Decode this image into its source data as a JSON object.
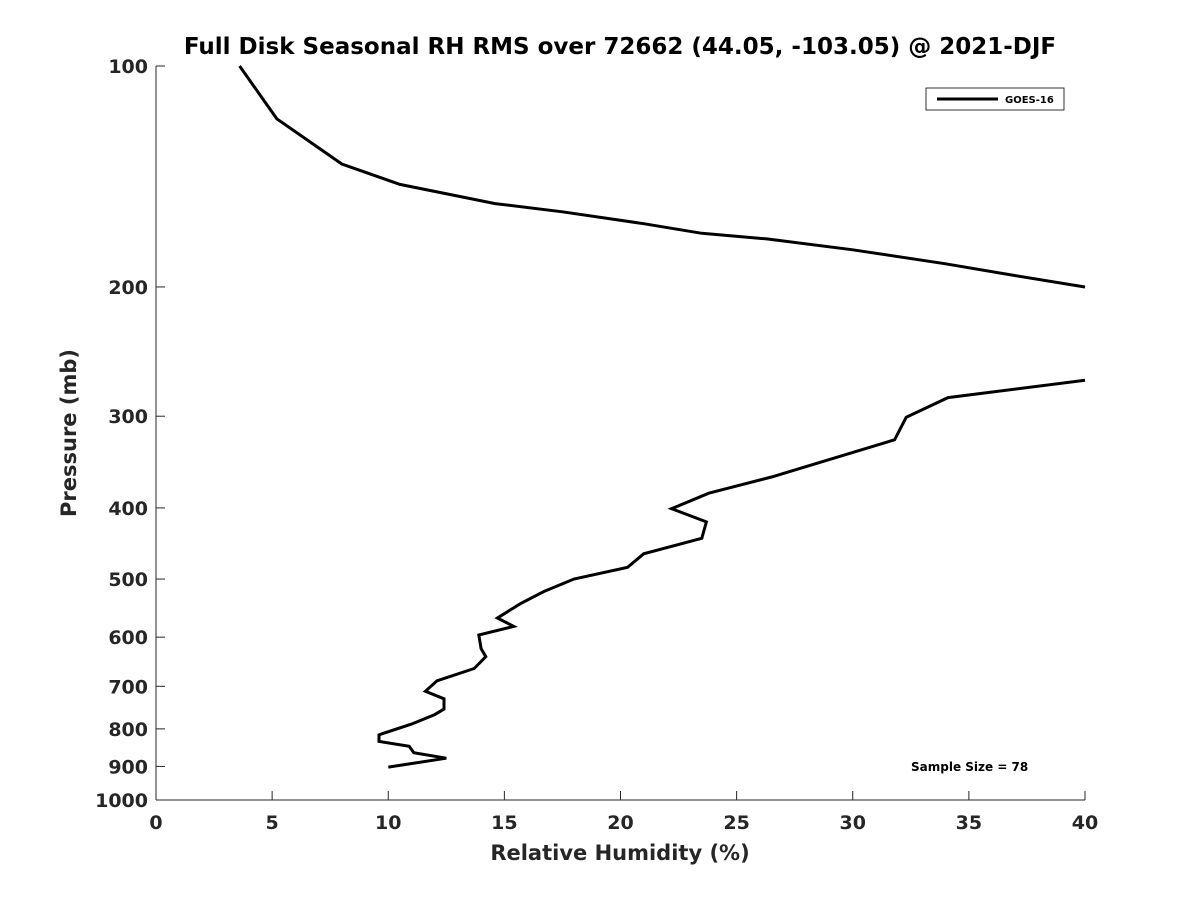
{
  "chart_data": {
    "type": "line",
    "title": "Full Disk Seasonal RH RMS over 72662 (44.05, -103.05) @ 2021-DJF",
    "xlabel": "Relative Humidity (%)",
    "ylabel": "Pressure (mb)",
    "xlim": [
      0,
      40
    ],
    "ylim": [
      100,
      1000
    ],
    "y_scale": "log",
    "y_reversed": true,
    "grid": false,
    "x_ticks": [
      "0",
      "5",
      "10",
      "15",
      "20",
      "25",
      "30",
      "35",
      "40"
    ],
    "y_ticks": [
      "100",
      "200",
      "300",
      "400",
      "500",
      "600",
      "700",
      "800",
      "900",
      "1000"
    ],
    "legend_position": "top-right",
    "annotation": "Sample Size = 78",
    "series": [
      {
        "name": "GOES-16",
        "color": "#000000",
        "points": [
          {
            "x": 3.6,
            "p": 100
          },
          {
            "x": 5.2,
            "p": 118
          },
          {
            "x": 8.0,
            "p": 136
          },
          {
            "x": 10.5,
            "p": 145
          },
          {
            "x": 14.6,
            "p": 154
          },
          {
            "x": 17.5,
            "p": 158
          },
          {
            "x": 21.0,
            "p": 164
          },
          {
            "x": 23.5,
            "p": 169
          },
          {
            "x": 26.3,
            "p": 172
          },
          {
            "x": 30.0,
            "p": 178
          },
          {
            "x": 34.0,
            "p": 186
          },
          {
            "x": 37.0,
            "p": 193
          },
          {
            "x": 40.0,
            "p": 200
          },
          {
            "x": null,
            "p": null
          },
          {
            "x": 40.0,
            "p": 268
          },
          {
            "x": 34.1,
            "p": 283
          },
          {
            "x": 32.3,
            "p": 301
          },
          {
            "x": 31.8,
            "p": 323
          },
          {
            "x": 26.5,
            "p": 363
          },
          {
            "x": 23.8,
            "p": 382
          },
          {
            "x": 22.2,
            "p": 401
          },
          {
            "x": 23.7,
            "p": 418
          },
          {
            "x": 23.5,
            "p": 440
          },
          {
            "x": 21.0,
            "p": 462
          },
          {
            "x": 20.3,
            "p": 482
          },
          {
            "x": 18.0,
            "p": 500
          },
          {
            "x": 16.7,
            "p": 520
          },
          {
            "x": 15.7,
            "p": 540
          },
          {
            "x": 14.7,
            "p": 565
          },
          {
            "x": 15.4,
            "p": 580
          },
          {
            "x": 13.9,
            "p": 596
          },
          {
            "x": 14.0,
            "p": 622
          },
          {
            "x": 14.2,
            "p": 638
          },
          {
            "x": 13.7,
            "p": 662
          },
          {
            "x": 12.1,
            "p": 688
          },
          {
            "x": 11.6,
            "p": 711
          },
          {
            "x": 12.4,
            "p": 728
          },
          {
            "x": 12.4,
            "p": 752
          },
          {
            "x": 12.0,
            "p": 765
          },
          {
            "x": 11.0,
            "p": 788
          },
          {
            "x": 9.6,
            "p": 815
          },
          {
            "x": 9.6,
            "p": 832
          },
          {
            "x": 10.9,
            "p": 845
          },
          {
            "x": 11.1,
            "p": 862
          },
          {
            "x": 12.5,
            "p": 877
          },
          {
            "x": 10.0,
            "p": 902
          }
        ]
      }
    ]
  }
}
